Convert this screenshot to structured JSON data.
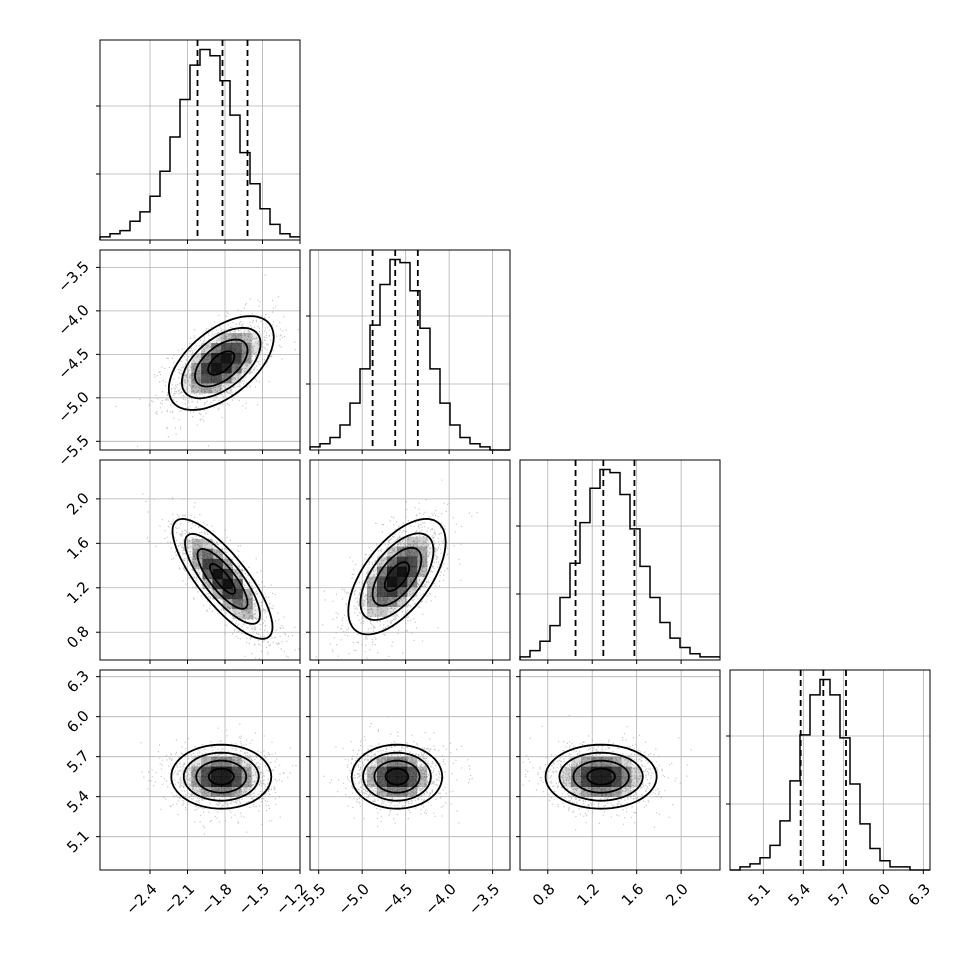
{
  "chart_data": {
    "type": "corner",
    "grid": true,
    "colors": {
      "line": "#000000",
      "grid": "#b0b0b0",
      "density": "#000000",
      "points": "#9a9a9a"
    },
    "axes": [
      {
        "index": 0,
        "range": [
          -2.8,
          -1.2
        ],
        "ticks": [
          -2.4,
          -2.1,
          -1.8,
          -1.5,
          -1.2
        ],
        "tick_labels": [
          "−2.4",
          "−2.1",
          "−1.8",
          "−1.5",
          "−1.2"
        ]
      },
      {
        "index": 1,
        "range": [
          -5.6,
          -3.3
        ],
        "ticks": [
          -5.5,
          -5.0,
          -4.5,
          -4.0,
          -3.5
        ],
        "tick_labels": [
          "−5.5",
          "−5.0",
          "−4.5",
          "−4.0",
          "−3.5"
        ]
      },
      {
        "index": 2,
        "range": [
          0.55,
          2.35
        ],
        "ticks": [
          0.8,
          1.2,
          1.6,
          2.0
        ],
        "tick_labels": [
          "0.8",
          "1.2",
          "1.6",
          "2.0"
        ]
      },
      {
        "index": 3,
        "range": [
          4.85,
          6.35
        ],
        "ticks": [
          5.1,
          5.4,
          5.7,
          6.0,
          6.3
        ],
        "tick_labels": [
          "5.1",
          "5.4",
          "5.7",
          "6.0",
          "6.3"
        ]
      }
    ],
    "diagonal": [
      {
        "index": 0,
        "quantiles": [
          -2.02,
          -1.82,
          -1.62
        ],
        "bin_edges": [
          -2.8,
          -2.72,
          -2.64,
          -2.56,
          -2.48,
          -2.4,
          -2.32,
          -2.24,
          -2.16,
          -2.08,
          -2.0,
          -1.92,
          -1.84,
          -1.76,
          -1.68,
          -1.6,
          -1.52,
          -1.44,
          -1.36,
          -1.28,
          -1.2
        ],
        "counts": [
          1,
          2,
          3,
          6,
          9,
          14,
          22,
          33,
          45,
          56,
          61,
          59,
          51,
          40,
          28,
          18,
          10,
          5,
          2,
          1
        ]
      },
      {
        "index": 1,
        "quantiles": [
          -4.88,
          -4.62,
          -4.36
        ],
        "bin_edges": [
          -5.6,
          -5.485,
          -5.37,
          -5.255,
          -5.14,
          -5.025,
          -4.91,
          -4.795,
          -4.68,
          -4.565,
          -4.45,
          -4.335,
          -4.22,
          -4.105,
          -3.99,
          -3.875,
          -3.76,
          -3.645,
          -3.53,
          -3.415,
          -3.3
        ],
        "counts": [
          1,
          2,
          4,
          8,
          15,
          26,
          40,
          53,
          61,
          60,
          51,
          39,
          26,
          15,
          8,
          4,
          2,
          1,
          0,
          0
        ]
      },
      {
        "index": 2,
        "quantiles": [
          1.05,
          1.3,
          1.58
        ],
        "bin_edges": [
          0.55,
          0.64,
          0.73,
          0.82,
          0.91,
          1.0,
          1.09,
          1.18,
          1.27,
          1.36,
          1.45,
          1.54,
          1.63,
          1.72,
          1.81,
          1.9,
          1.99,
          2.08,
          2.17,
          2.26,
          2.35
        ],
        "counts": [
          1,
          3,
          6,
          11,
          20,
          31,
          44,
          55,
          61,
          60,
          53,
          42,
          30,
          20,
          12,
          7,
          4,
          2,
          1,
          1
        ]
      },
      {
        "index": 3,
        "quantiles": [
          5.38,
          5.55,
          5.72
        ],
        "bin_edges": [
          4.85,
          4.925,
          5.0,
          5.075,
          5.15,
          5.225,
          5.3,
          5.375,
          5.45,
          5.525,
          5.6,
          5.675,
          5.75,
          5.825,
          5.9,
          5.975,
          6.05,
          6.125,
          6.2,
          6.275,
          6.35
        ],
        "counts": [
          0,
          1,
          2,
          4,
          8,
          16,
          29,
          44,
          57,
          62,
          57,
          43,
          28,
          15,
          7,
          3,
          1,
          1,
          0,
          0
        ]
      }
    ],
    "pairs": [
      {
        "x": 0,
        "y": 1,
        "mean": [
          -1.83,
          -4.6
        ],
        "sd": [
          0.21,
          0.27
        ],
        "rho": 0.55
      },
      {
        "x": 0,
        "y": 2,
        "mean": [
          -1.82,
          1.28
        ],
        "sd": [
          0.2,
          0.27
        ],
        "rho": -0.8
      },
      {
        "x": 1,
        "y": 2,
        "mean": [
          -4.6,
          1.3
        ],
        "sd": [
          0.28,
          0.26
        ],
        "rho": 0.6
      },
      {
        "x": 0,
        "y": 3,
        "mean": [
          -1.83,
          5.55
        ],
        "sd": [
          0.2,
          0.12
        ],
        "rho": 0.0
      },
      {
        "x": 1,
        "y": 3,
        "mean": [
          -4.6,
          5.55
        ],
        "sd": [
          0.26,
          0.12
        ],
        "rho": 0.0
      },
      {
        "x": 2,
        "y": 3,
        "mean": [
          1.28,
          5.55
        ],
        "sd": [
          0.25,
          0.12
        ],
        "rho": 0.0
      }
    ]
  }
}
